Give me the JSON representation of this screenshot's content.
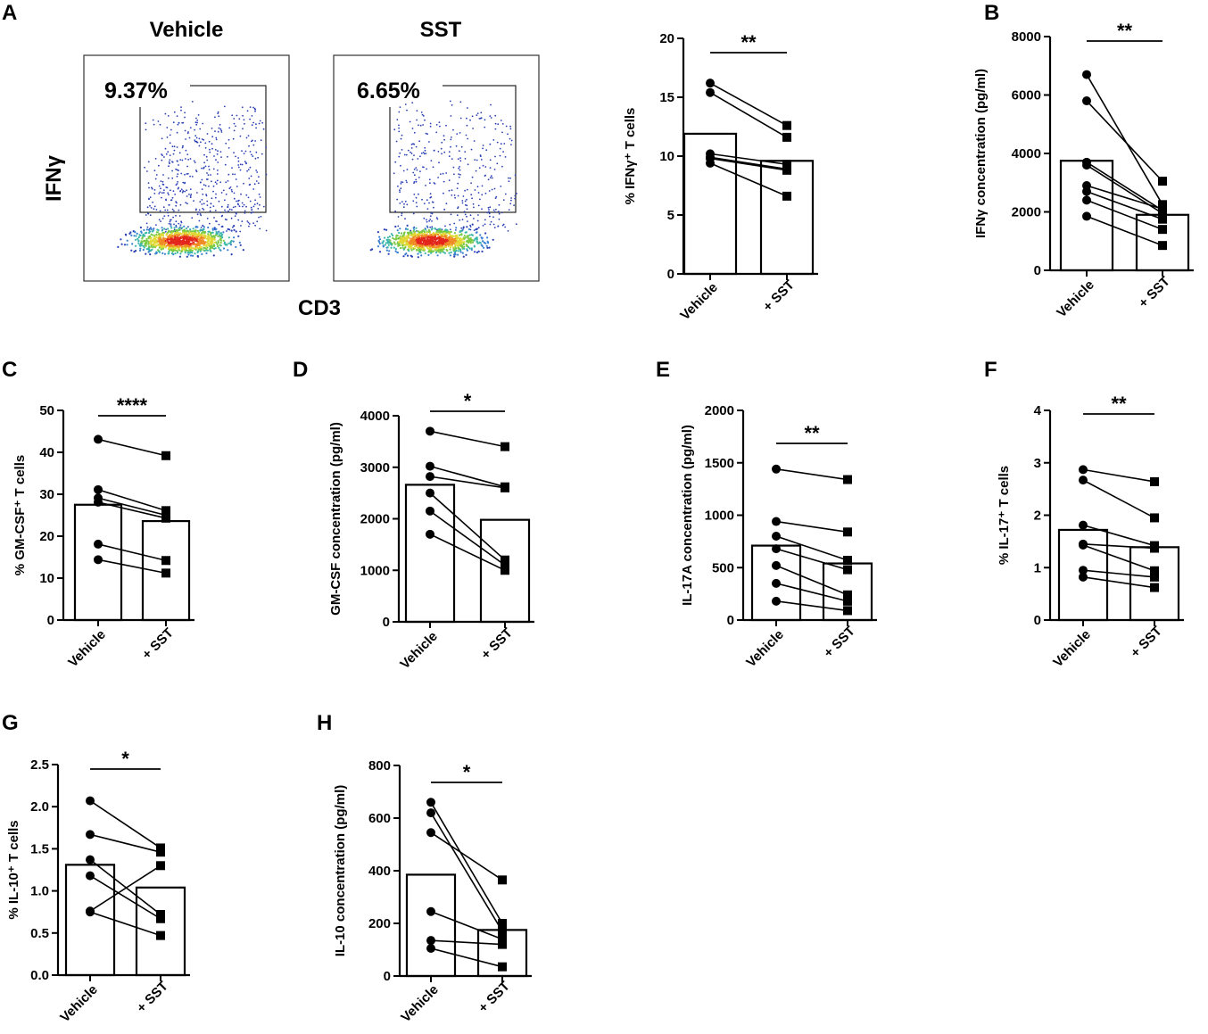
{
  "panel_letters": [
    "A",
    "B",
    "C",
    "D",
    "E",
    "F",
    "G",
    "H"
  ],
  "flow": {
    "x_axis_label": "CD3",
    "y_axis_label": "IFNγ",
    "plots": [
      {
        "title": "Vehicle",
        "gate_percent": "9.37%"
      },
      {
        "title": "SST",
        "gate_percent": "6.65%"
      }
    ]
  },
  "chart_data": [
    {
      "id": "A",
      "type": "bar",
      "categories": [
        "Vehicle",
        "+ SST"
      ],
      "ylabel": "% IFNγ⁺ T cells",
      "ylim": [
        0,
        20
      ],
      "yticks": [
        0,
        5,
        10,
        15,
        20
      ],
      "yticklabels": [
        "0",
        "5",
        "10",
        "15",
        "20"
      ],
      "bar_means": [
        11.9,
        9.6
      ],
      "pairs": [
        [
          16.2,
          12.6
        ],
        [
          15.4,
          11.6
        ],
        [
          10.2,
          9.3
        ],
        [
          9.9,
          8.9
        ],
        [
          9.8,
          8.8
        ],
        [
          9.4,
          6.6
        ]
      ],
      "significance": "**"
    },
    {
      "id": "B",
      "type": "bar",
      "categories": [
        "Vehicle",
        "+ SST"
      ],
      "ylabel": "IFNγ concentration (pg/ml)",
      "ylim": [
        0,
        8000
      ],
      "yticks": [
        0,
        2000,
        4000,
        6000,
        8000
      ],
      "yticklabels": [
        "0",
        "2000",
        "4000",
        "6000",
        "8000"
      ],
      "bar_means": [
        3750,
        1900
      ],
      "pairs": [
        [
          6700,
          2250
        ],
        [
          5800,
          3050
        ],
        [
          3700,
          2050
        ],
        [
          3600,
          1950
        ],
        [
          2900,
          2100
        ],
        [
          2700,
          1750
        ],
        [
          2400,
          1400
        ],
        [
          1850,
          850
        ]
      ],
      "significance": "**"
    },
    {
      "id": "C",
      "type": "bar",
      "categories": [
        "Vehicle",
        "+ SST"
      ],
      "ylabel": "% GM-CSF⁺ T cells",
      "ylim": [
        0,
        50
      ],
      "yticks": [
        0,
        10,
        20,
        30,
        40,
        50
      ],
      "yticklabels": [
        "0",
        "10",
        "20",
        "30",
        "40",
        "50"
      ],
      "bar_means": [
        27.5,
        23.6
      ],
      "pairs": [
        [
          43.1,
          39.2
        ],
        [
          31.1,
          26.1
        ],
        [
          29.1,
          25.0
        ],
        [
          28.1,
          24.3
        ],
        [
          18.1,
          14.2
        ],
        [
          14.4,
          11.2
        ]
      ],
      "significance": "****"
    },
    {
      "id": "D",
      "type": "bar",
      "categories": [
        "Vehicle",
        "+ SST"
      ],
      "ylabel": "GM-CSF concentration (pg/ml)",
      "ylim": [
        0,
        4000
      ],
      "yticks": [
        0,
        1000,
        2000,
        3000,
        4000
      ],
      "yticklabels": [
        "0",
        "1000",
        "2000",
        "3000",
        "4000"
      ],
      "bar_means": [
        2660,
        1980
      ],
      "pairs": [
        [
          3700,
          3400
        ],
        [
          3020,
          2620
        ],
        [
          2820,
          2600
        ],
        [
          2500,
          1200
        ],
        [
          2150,
          1100
        ],
        [
          1700,
          1000
        ]
      ],
      "significance": "*"
    },
    {
      "id": "E",
      "type": "bar",
      "categories": [
        "Vehicle",
        "+ SST"
      ],
      "ylabel": "IL-17A concentration (pg/ml)",
      "ylim": [
        0,
        2000
      ],
      "yticks": [
        0,
        500,
        1000,
        1500,
        2000
      ],
      "yticklabels": [
        "0",
        "500",
        "1000",
        "1500",
        "2000"
      ],
      "bar_means": [
        710,
        540
      ],
      "pairs": [
        [
          1440,
          1340
        ],
        [
          940,
          840
        ],
        [
          800,
          570
        ],
        [
          680,
          480
        ],
        [
          520,
          240
        ],
        [
          350,
          180
        ],
        [
          180,
          90
        ]
      ],
      "significance": "**"
    },
    {
      "id": "F",
      "type": "bar",
      "categories": [
        "Vehicle",
        "+ SST"
      ],
      "ylabel": "% IL-17⁺ T cells",
      "ylim": [
        0,
        4
      ],
      "yticks": [
        0,
        1,
        2,
        3,
        4
      ],
      "yticklabels": [
        "0",
        "1",
        "2",
        "3",
        "4"
      ],
      "bar_means": [
        1.72,
        1.39
      ],
      "pairs": [
        [
          2.87,
          2.64
        ],
        [
          2.67,
          1.95
        ],
        [
          1.81,
          1.42
        ],
        [
          1.45,
          1.37
        ],
        [
          1.43,
          0.94
        ],
        [
          0.95,
          0.82
        ],
        [
          0.82,
          0.62
        ]
      ],
      "significance": "**"
    },
    {
      "id": "G",
      "type": "bar",
      "categories": [
        "Vehicle",
        "+ SST"
      ],
      "ylabel": "% IL-10⁺ T cells",
      "ylim": [
        0,
        2.5
      ],
      "yticks": [
        0,
        0.5,
        1.0,
        1.5,
        2.0,
        2.5
      ],
      "yticklabels": [
        "0.0",
        "0.5",
        "1.0",
        "1.5",
        "2.0",
        "2.5"
      ],
      "bar_means": [
        1.31,
        1.04
      ],
      "pairs": [
        [
          2.07,
          1.51
        ],
        [
          1.67,
          1.46
        ],
        [
          1.37,
          0.72
        ],
        [
          1.18,
          0.67
        ],
        [
          0.76,
          1.3
        ],
        [
          0.75,
          0.47
        ]
      ],
      "significance": "*"
    },
    {
      "id": "H",
      "type": "bar",
      "categories": [
        "Vehicle",
        "+ SST"
      ],
      "ylabel": "IL-10 concentration (pg/ml)",
      "ylim": [
        0,
        800
      ],
      "yticks": [
        0,
        200,
        400,
        600,
        800
      ],
      "yticklabels": [
        "0",
        "200",
        "400",
        "600",
        "800"
      ],
      "bar_means": [
        385,
        175
      ],
      "pairs": [
        [
          660,
          200
        ],
        [
          620,
          170
        ],
        [
          545,
          365
        ],
        [
          245,
          140
        ],
        [
          135,
          120
        ],
        [
          105,
          35
        ]
      ],
      "significance": "*"
    }
  ]
}
